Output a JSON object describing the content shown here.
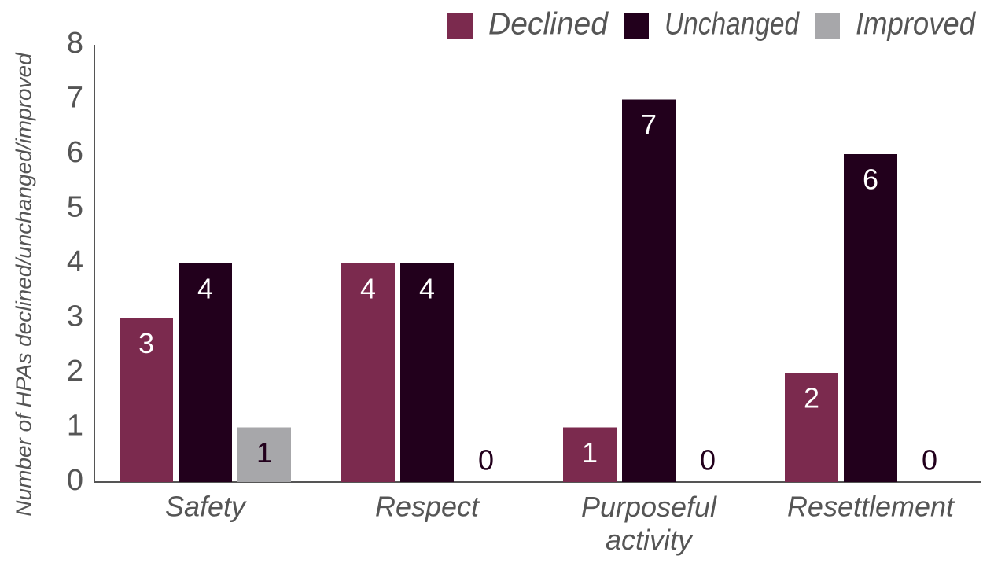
{
  "chart_data": {
    "type": "bar",
    "y_label": "Number of HPAs declined/unchanged/improved",
    "categories": [
      "Safety",
      "Respect",
      "Purposeful activity",
      "Resettlement"
    ],
    "series": [
      {
        "name": "Declined",
        "color": "#7b2a4e",
        "label_color": "#ffffff",
        "values": [
          3,
          4,
          1,
          2
        ]
      },
      {
        "name": "Unchanged",
        "color": "#22001c",
        "label_color": "#ffffff",
        "values": [
          4,
          4,
          7,
          6
        ]
      },
      {
        "name": "Improved",
        "color": "#a7a7aa",
        "label_color": "#22001c",
        "values": [
          1,
          0,
          0,
          0
        ]
      }
    ],
    "ylim": [
      0,
      8
    ],
    "yticks": [
      0,
      1,
      2,
      3,
      4,
      5,
      6,
      7,
      8
    ],
    "grid": false,
    "legend": "top-right"
  }
}
